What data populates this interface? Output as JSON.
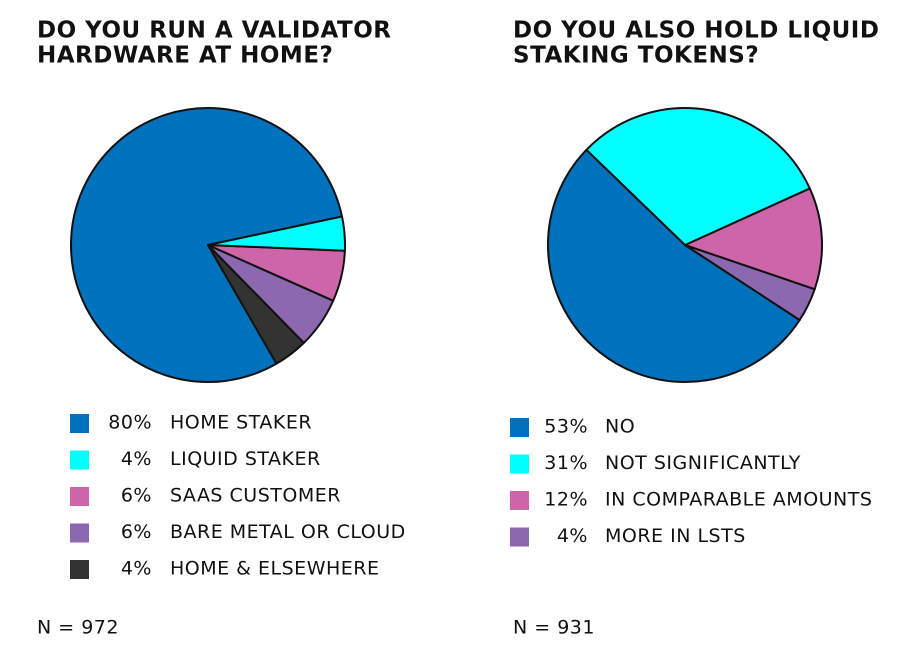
{
  "chart_data": [
    {
      "type": "pie",
      "title": [
        "DO YOU RUN A VALIDATOR",
        "HARDWARE AT HOME?"
      ],
      "categories": [
        "HOME STAKER",
        "LIQUID STAKER",
        "SAAS CUSTOMER",
        "BARE METAL OR CLOUD",
        "HOME & ELSEWHERE"
      ],
      "values": [
        80,
        4,
        6,
        6,
        4
      ],
      "value_labels": [
        "80%",
        "4%",
        "6%",
        "6%",
        "4%"
      ],
      "colors": [
        "#0072bd",
        "#00ffff",
        "#cc66a8",
        "#8c68b0",
        "#333333"
      ],
      "note": "N = 972"
    },
    {
      "type": "pie",
      "title": [
        "DO YOU ALSO HOLD LIQUID",
        "STAKING TOKENS?"
      ],
      "categories": [
        "NO",
        "NOT SIGNIFICANTLY",
        "IN COMPARABLE AMOUNTS",
        "MORE IN LSTS"
      ],
      "values": [
        53,
        31,
        12,
        4
      ],
      "value_labels": [
        "53%",
        "31%",
        "12%",
        "4%"
      ],
      "colors": [
        "#0072bd",
        "#00ffff",
        "#cc66a8",
        "#8c68b0"
      ],
      "note": "N = 931"
    }
  ]
}
